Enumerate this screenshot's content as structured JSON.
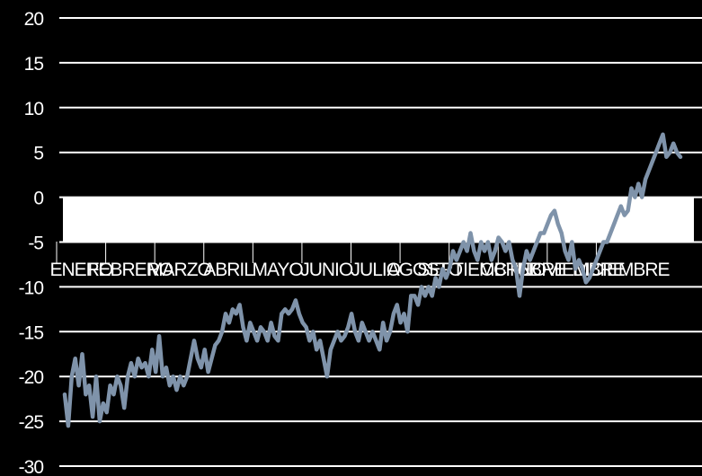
{
  "chart_data": {
    "type": "line",
    "title": "",
    "xlabel": "",
    "ylabel": "",
    "ylim": [
      -30,
      20
    ],
    "yticks": [
      20,
      15,
      10,
      5,
      0,
      -5,
      -10,
      -15,
      -20,
      -25,
      -30
    ],
    "grid": true,
    "legend": "none",
    "months": [
      "ENERO",
      "FEBRERO",
      "MARZO",
      "ABRIL",
      "MAYO",
      "JUNIO",
      "JULIO",
      "AGOSTO",
      "SEPTIEMBRE",
      "OCTUBRE",
      "NOVIEMBRE",
      "DICIEMBRE"
    ],
    "colors": {
      "background": "#000000",
      "grid": "#ffffff",
      "line": "#7f93aa",
      "month_band": "#ffffff"
    },
    "series": [
      {
        "values": [
          -22,
          -25.5,
          -20,
          -18,
          -21,
          -17.5,
          -22,
          -21,
          -24.5,
          -20,
          -25,
          -23,
          -24,
          -21,
          -22,
          -20,
          -21,
          -23.5,
          -20,
          -18.5,
          -20,
          -18,
          -19,
          -18.5,
          -20,
          -17,
          -19.5,
          -15.5,
          -20,
          -19,
          -21,
          -20,
          -21.5,
          -20,
          -21,
          -20,
          -18,
          -16,
          -18,
          -19,
          -17,
          -19.5,
          -18,
          -16.5,
          -16,
          -15,
          -13,
          -14,
          -12.5,
          -13,
          -12,
          -14.5,
          -16,
          -14,
          -15,
          -16,
          -14.5,
          -15,
          -16,
          -14,
          -15.5,
          -16,
          -13,
          -12.5,
          -13,
          -12.5,
          -11.5,
          -13,
          -14,
          -14.5,
          -16,
          -15,
          -17,
          -16,
          -18,
          -20,
          -17,
          -16,
          -15,
          -16,
          -15.5,
          -14.5,
          -13,
          -15,
          -16,
          -14,
          -15,
          -16,
          -15,
          -16,
          -17,
          -14,
          -16,
          -15,
          -13,
          -12,
          -14,
          -13,
          -15,
          -11,
          -11,
          -12,
          -10,
          -11,
          -10,
          -11,
          -9,
          -10,
          -8,
          -9,
          -8,
          -6,
          -7,
          -6,
          -5,
          -6,
          -4,
          -6,
          -7,
          -5,
          -6,
          -5,
          -7,
          -6,
          -4.5,
          -5,
          -6,
          -5,
          -7,
          -8,
          -11,
          -8,
          -6,
          -7,
          -6,
          -5,
          -4,
          -4,
          -3,
          -2,
          -1.5,
          -3,
          -4,
          -6,
          -7,
          -5,
          -8,
          -7,
          -8,
          -9.5,
          -9,
          -8,
          -7,
          -6,
          -5,
          -5,
          -4,
          -3,
          -2,
          -1,
          -2,
          -1.5,
          1,
          0,
          1.5,
          0,
          2,
          3,
          4,
          5,
          6,
          7,
          4.5,
          5,
          6,
          5,
          4.5
        ]
      }
    ]
  }
}
